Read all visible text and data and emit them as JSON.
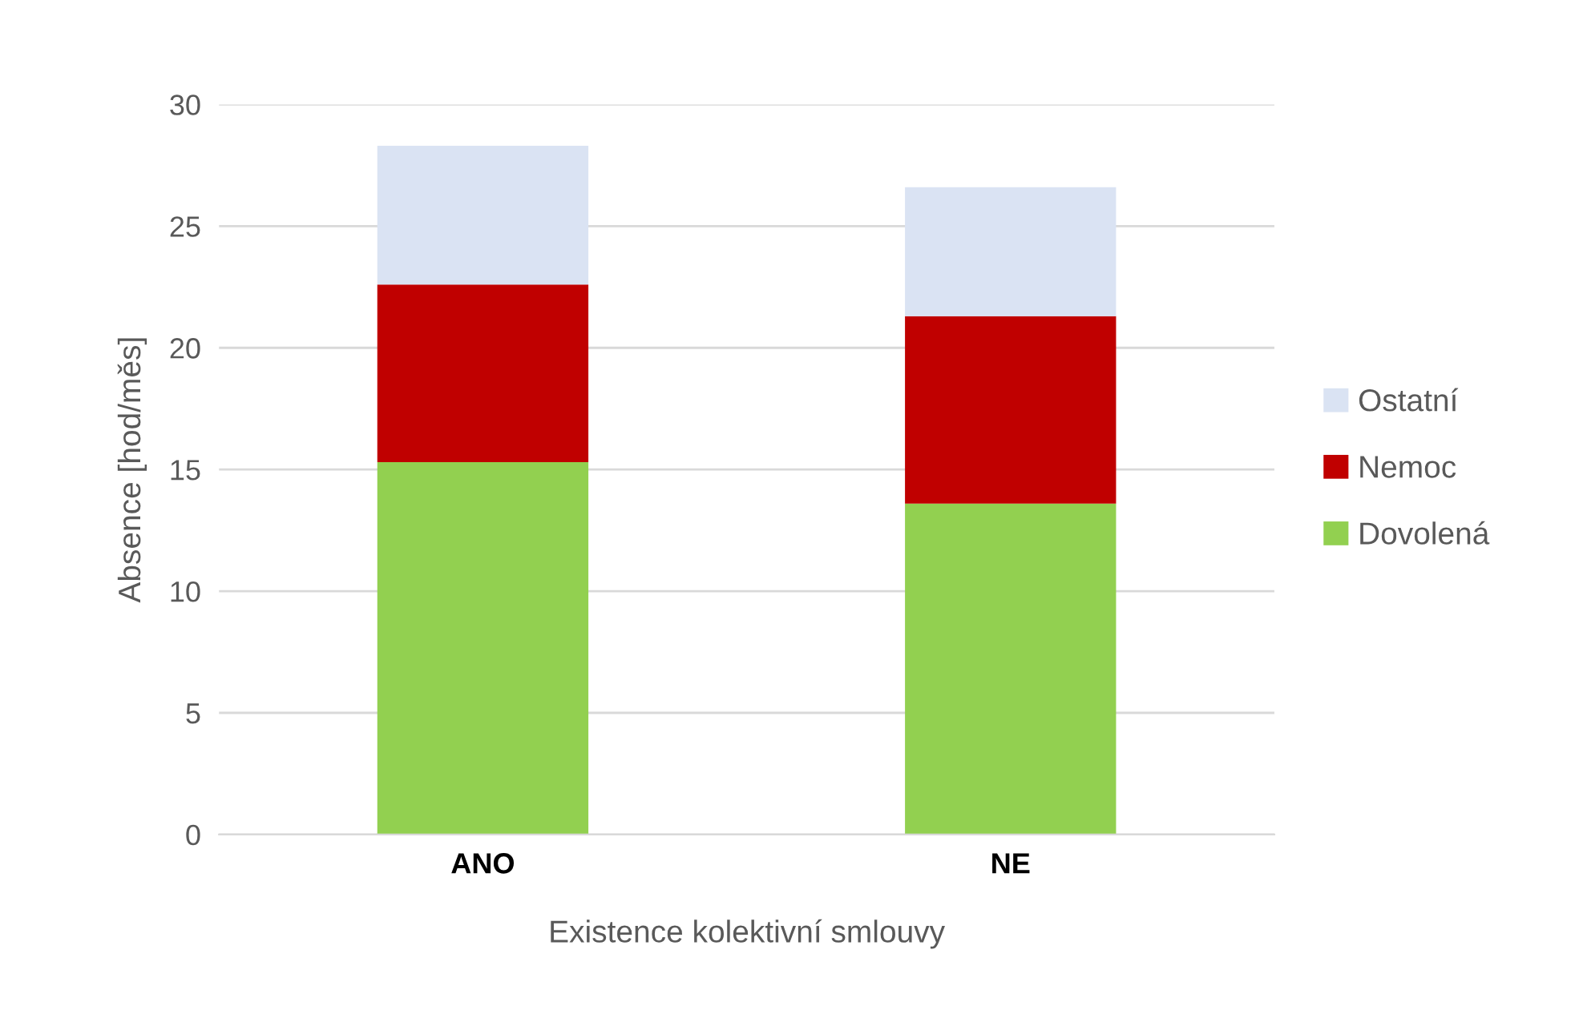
{
  "chart_data": {
    "type": "bar",
    "stacked": true,
    "xlabel": "Existence kolektivní smlouvy",
    "ylabel": "Absence [hod/měs]",
    "categories": [
      "ANO",
      "NE"
    ],
    "series": [
      {
        "name": "Dovolená",
        "color": "#92d050",
        "values": [
          15.3,
          13.6
        ]
      },
      {
        "name": "Nemoc",
        "color": "#c00000",
        "values": [
          7.3,
          7.7
        ]
      },
      {
        "name": "Ostatní",
        "color": "#dae3f3",
        "values": [
          5.7,
          5.3
        ]
      }
    ],
    "ylim": [
      0,
      30
    ],
    "yticks": [
      0,
      5,
      10,
      15,
      20,
      25,
      30
    ],
    "grid": "y",
    "legend": "right"
  }
}
